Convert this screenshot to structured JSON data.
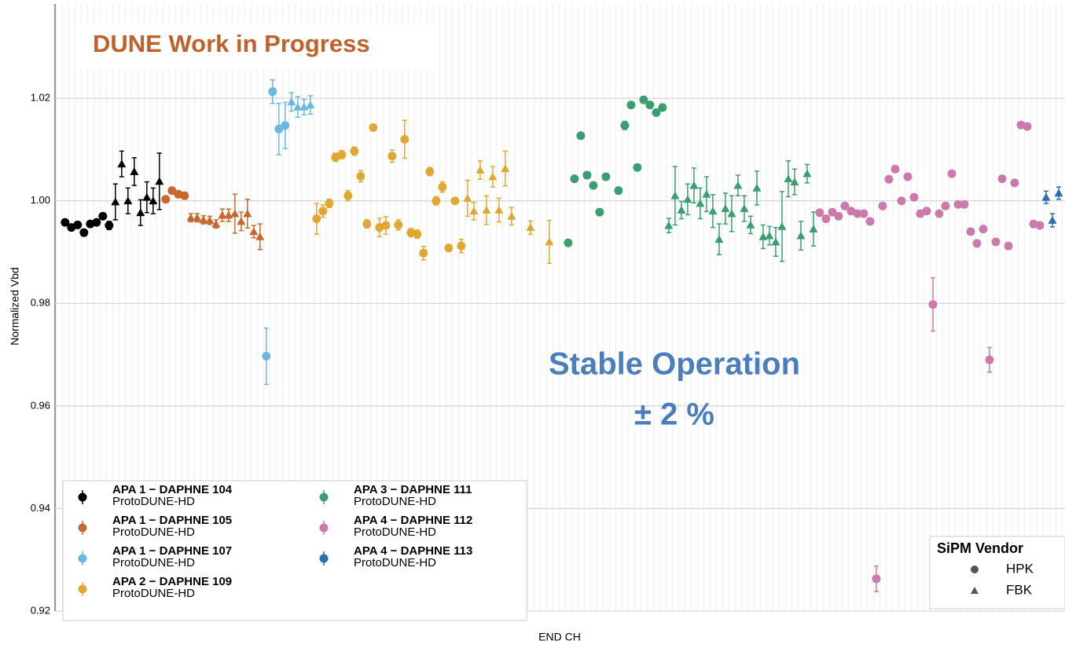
{
  "chart_data": {
    "type": "scatter",
    "annotation_top": "DUNE Work in Progress",
    "annotation_center": "Stable Operation",
    "annotation_center_2": "± 2 %",
    "x_label": "END CH",
    "y_label": "Normalized Vbd",
    "xlim": [
      -1.6,
      159
    ],
    "ylim": [
      0.92,
      1.0384
    ],
    "yticks": [
      1.02,
      {
        "value": 1,
        "label": "1.00"
      },
      0.98,
      0.96,
      0.94,
      0.92
    ],
    "grid": true,
    "legend": "lower left",
    "vendor_legend": {
      "title": "SiPM Vendor",
      "items": [
        {
          "name": "HPK",
          "marker": "circle"
        },
        {
          "name": "FBK",
          "marker": "triangle"
        }
      ],
      "corner": "lower right"
    },
    "series": [
      {
        "name": "APA 1 − DAPHNE 104",
        "subtitle": "ProtoDUNE-HD",
        "color": "#000000",
        "x": [
          0,
          1,
          2,
          3,
          4,
          5,
          6,
          7,
          8,
          9,
          10,
          11,
          12,
          13,
          14,
          15
        ],
        "values": [
          0.9958,
          0.9948,
          0.9953,
          0.9938,
          0.9955,
          0.9958,
          0.997,
          0.9952,
          0.9998,
          1.0072,
          1.0,
          1.0057,
          0.9977,
          1.0007,
          1.0,
          1.0038
        ],
        "errors": [
          0.0004,
          0.0004,
          0.0005,
          0.0006,
          0.0005,
          0.0005,
          0.0005,
          0.0008,
          0.0035,
          0.0025,
          0.0025,
          0.0027,
          0.0025,
          0.003,
          0.0025,
          0.0055
        ],
        "markers": [
          "circle",
          "circle",
          "circle",
          "circle",
          "circle",
          "circle",
          "circle",
          "circle",
          "triangle",
          "triangle",
          "triangle",
          "triangle",
          "triangle",
          "triangle",
          "triangle",
          "triangle"
        ]
      },
      {
        "name": "APA 1 − DAPHNE 105",
        "subtitle": "ProtoDUNE-HD",
        "color": "#c8682c",
        "x": [
          16,
          17,
          18,
          19,
          20,
          21,
          22,
          23,
          24,
          25,
          26,
          27,
          28,
          29,
          30,
          31
        ],
        "values": [
          1.0003,
          1.002,
          1.0013,
          1.001,
          0.9967,
          0.9967,
          0.9963,
          0.9962,
          0.9955,
          0.9972,
          0.9972,
          0.9975,
          0.996,
          0.9975,
          0.994,
          0.993
        ],
        "errors": [
          0.0004,
          0.0005,
          0.0005,
          0.0004,
          0.0008,
          0.0008,
          0.0008,
          0.0008,
          0.0008,
          0.0012,
          0.0012,
          0.0038,
          0.0018,
          0.0028,
          0.0012,
          0.0025
        ],
        "markers": [
          "circle",
          "circle",
          "circle",
          "circle",
          "triangle",
          "triangle",
          "triangle",
          "triangle",
          "triangle",
          "triangle",
          "triangle",
          "triangle",
          "triangle",
          "triangle",
          "triangle",
          "triangle"
        ]
      },
      {
        "name": "APA 1 − DAPHNE 107",
        "subtitle": "ProtoDUNE-HD",
        "color": "#6cb6e4",
        "x": [
          32,
          33,
          34,
          35,
          36,
          37,
          38,
          39
        ],
        "values": [
          0.9697,
          1.0213,
          1.014,
          1.0147,
          1.0193,
          1.0183,
          1.0183,
          1.0187
        ],
        "errors": [
          0.0055,
          0.0023,
          0.005,
          0.0045,
          0.0018,
          0.002,
          0.0015,
          0.0018
        ],
        "markers": [
          "circle",
          "circle",
          "circle",
          "circle",
          "triangle",
          "triangle",
          "triangle",
          "triangle"
        ]
      },
      {
        "name": "APA 2 − DAPHNE 109",
        "subtitle": "ProtoDUNE-HD",
        "color": "#e0a832",
        "x": [
          40,
          41,
          42,
          43,
          44,
          45,
          46,
          47,
          48,
          49,
          50,
          51,
          52,
          53,
          54,
          55,
          56,
          57,
          58,
          59,
          60,
          61,
          62,
          63,
          64,
          65,
          66,
          67,
          68,
          69,
          70,
          71,
          74,
          77
        ],
        "values": [
          0.9965,
          0.998,
          0.9995,
          1.0085,
          1.009,
          1.001,
          1.0097,
          1.0048,
          0.9955,
          1.0143,
          0.9948,
          0.9952,
          1.0087,
          0.9953,
          1.012,
          0.9938,
          0.9935,
          0.9898,
          1.0057,
          1.0,
          1.0027,
          0.9908,
          1.0,
          0.9912,
          1.0005,
          0.998,
          1.006,
          0.9982,
          1.0047,
          0.9982,
          1.0063,
          0.997,
          0.9948,
          0.992
        ],
        "errors": [
          0.003,
          0.0012,
          0.0008,
          0.0008,
          0.0008,
          0.001,
          0.0008,
          0.0011,
          0.0008,
          0.0006,
          0.0018,
          0.0017,
          0.0012,
          0.001,
          0.0037,
          0.0008,
          0.0008,
          0.0013,
          0.0008,
          0.0008,
          0.001,
          0.0007,
          0.0006,
          0.0013,
          0.0035,
          0.0017,
          0.0018,
          0.0028,
          0.002,
          0.0023,
          0.0034,
          0.0017,
          0.0013,
          0.0042
        ],
        "markers": [
          "circle",
          "circle",
          "circle",
          "circle",
          "circle",
          "circle",
          "circle",
          "circle",
          "circle",
          "circle",
          "circle",
          "circle",
          "circle",
          "circle",
          "circle",
          "circle",
          "circle",
          "circle",
          "circle",
          "circle",
          "circle",
          "circle",
          "circle",
          "circle",
          "triangle",
          "triangle",
          "triangle",
          "triangle",
          "triangle",
          "triangle",
          "triangle",
          "triangle",
          "triangle",
          "triangle"
        ]
      },
      {
        "name": "APA 3 − DAPHNE 111",
        "subtitle": "ProtoDUNE-HD",
        "color": "#3a9e6e",
        "x": [
          80,
          81,
          82,
          83,
          84,
          85,
          86,
          88,
          89,
          90,
          91,
          92,
          93,
          94,
          95,
          96,
          97,
          98,
          99,
          100,
          101,
          102,
          103,
          104,
          105,
          106,
          107,
          108,
          109,
          110,
          111,
          112,
          113,
          114,
          115,
          116,
          117,
          118,
          119
        ],
        "values": [
          0.9918,
          1.0043,
          1.0127,
          1.005,
          1.003,
          0.9978,
          1.0047,
          1.002,
          1.0147,
          1.0187,
          1.0065,
          1.0197,
          1.0187,
          1.0172,
          1.0182,
          0.9952,
          1.001,
          0.9982,
          1.0003,
          1.003,
          0.9995,
          1.0013,
          0.998,
          0.9925,
          0.9985,
          0.9975,
          1.003,
          0.9985,
          0.9953,
          1.0025,
          0.993,
          0.9932,
          0.992,
          0.995,
          1.0043,
          1.0037,
          0.9932,
          1.0053,
          0.9945
        ],
        "errors": [
          0.0005,
          0.0006,
          0.0006,
          0.0006,
          0.0006,
          0.0005,
          0.0006,
          0.0006,
          0.0008,
          0.0006,
          0.0005,
          0.0006,
          0.0006,
          0.0006,
          0.0005,
          0.0014,
          0.0057,
          0.0017,
          0.003,
          0.0034,
          0.003,
          0.0034,
          0.0032,
          0.003,
          0.003,
          0.0035,
          0.002,
          0.0025,
          0.0017,
          0.0033,
          0.0023,
          0.0018,
          0.0028,
          0.0068,
          0.0035,
          0.0025,
          0.0028,
          0.0018,
          0.0033
        ],
        "markers": [
          "circle",
          "circle",
          "circle",
          "circle",
          "circle",
          "circle",
          "circle",
          "circle",
          "circle",
          "circle",
          "circle",
          "circle",
          "circle",
          "circle",
          "circle",
          "triangle",
          "triangle",
          "triangle",
          "triangle",
          "triangle",
          "triangle",
          "triangle",
          "triangle",
          "triangle",
          "triangle",
          "triangle",
          "triangle",
          "triangle",
          "triangle",
          "triangle",
          "triangle",
          "triangle",
          "triangle",
          "triangle",
          "triangle",
          "triangle",
          "triangle",
          "triangle",
          "triangle"
        ]
      },
      {
        "name": "APA 4 − DAPHNE 112",
        "subtitle": "ProtoDUNE-HD",
        "color": "#cc7aab",
        "x": [
          120,
          121,
          122,
          123,
          124,
          125,
          126,
          127,
          128,
          129,
          130,
          131,
          132,
          133,
          134,
          135,
          136,
          137,
          138,
          139,
          140,
          141,
          142,
          143,
          144,
          145,
          146,
          147,
          148,
          149,
          150,
          151,
          152,
          153,
          154,
          155
        ],
        "values": [
          0.9977,
          0.9965,
          0.9978,
          0.997,
          0.999,
          0.998,
          0.9975,
          0.9975,
          0.996,
          0.9263,
          0.999,
          1.0042,
          1.0062,
          1.0,
          1.0047,
          1.0007,
          0.9975,
          0.998,
          0.9798,
          0.9975,
          0.999,
          1.0053,
          0.9993,
          0.9993,
          0.994,
          0.9917,
          0.9945,
          0.969,
          0.992,
          1.0043,
          0.9912,
          1.0035,
          1.0148,
          1.0145,
          0.9955,
          0.9952
        ],
        "errors": [
          0.0006,
          0.0006,
          0.0006,
          0.0006,
          0.0006,
          0.0006,
          0.0006,
          0.0006,
          0.0006,
          0.0025,
          0.0006,
          0.0006,
          0.0006,
          0.0006,
          0.0006,
          0.0006,
          0.0006,
          0.0006,
          0.0052,
          0.0006,
          0.0006,
          0.0006,
          0.0006,
          0.0006,
          0.0006,
          0.0006,
          0.0006,
          0.0024,
          0.0006,
          0.0006,
          0.0006,
          0.0006,
          0.0006,
          0.0006,
          0.0006,
          0.0006
        ],
        "markers": [
          "circle",
          "circle",
          "circle",
          "circle",
          "circle",
          "circle",
          "circle",
          "circle",
          "circle",
          "circle",
          "circle",
          "circle",
          "circle",
          "circle",
          "circle",
          "circle",
          "circle",
          "circle",
          "circle",
          "circle",
          "circle",
          "circle",
          "circle",
          "circle",
          "circle",
          "circle",
          "circle",
          "circle",
          "circle",
          "circle",
          "circle",
          "circle",
          "circle",
          "circle",
          "circle",
          "circle"
        ]
      },
      {
        "name": "APA 4 − DAPHNE 113",
        "subtitle": "ProtoDUNE-HD",
        "color": "#2a6fb0",
        "x": [
          156,
          157,
          158
        ],
        "values": [
          1.0007,
          0.9962,
          1.0015
        ],
        "errors": [
          0.0012,
          0.0013,
          0.0012
        ],
        "markers": [
          "triangle",
          "triangle",
          "triangle"
        ]
      }
    ]
  }
}
